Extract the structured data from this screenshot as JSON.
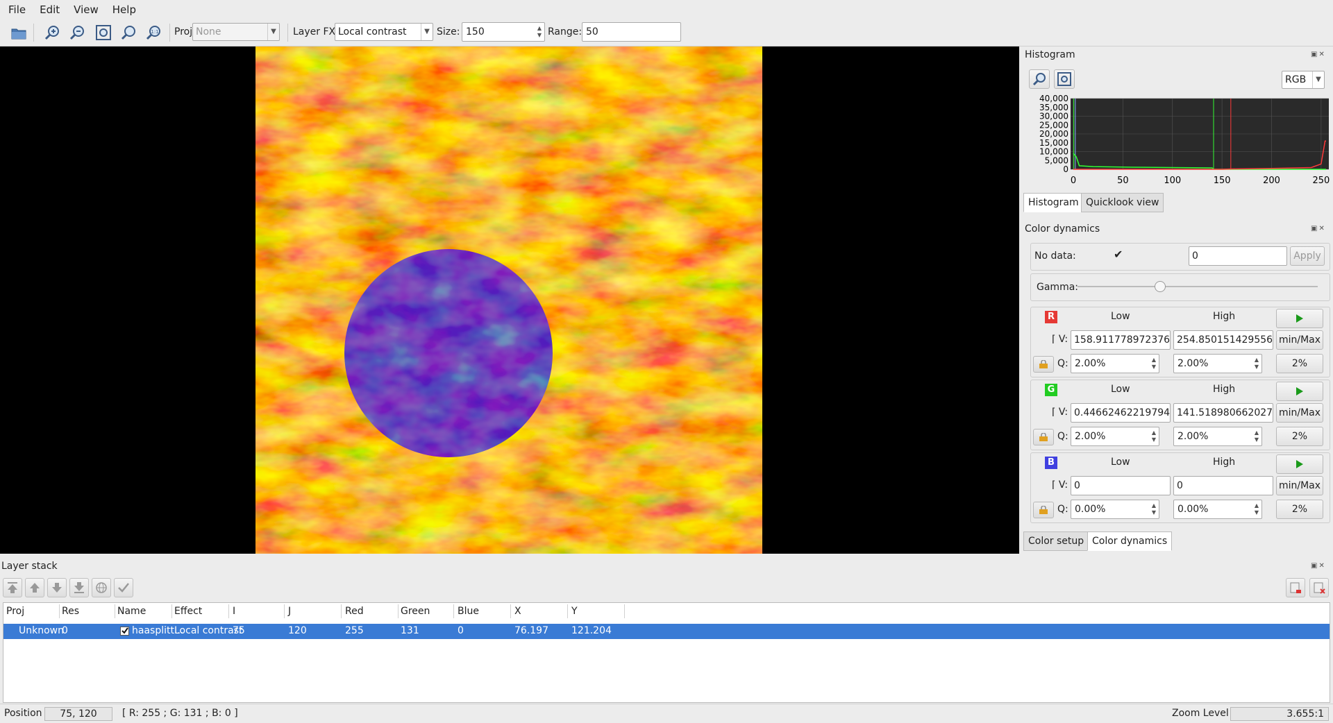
{
  "menubar": {
    "items": [
      "File",
      "Edit",
      "View",
      "Help"
    ]
  },
  "toolbar": {
    "proj_label": "Proj",
    "proj_value": "None",
    "layerfx_label": "Layer FX",
    "layerfx_value": "Local contrast",
    "size_label": "Size:",
    "size_value": "150",
    "range_label": "Range:",
    "range_value": "50"
  },
  "histogram": {
    "title": "Histogram",
    "mode": "RGB",
    "y_ticks": [
      "40,000",
      "35,000",
      "30,000",
      "25,000",
      "20,000",
      "15,000",
      "10,000",
      "5,000",
      "0"
    ],
    "x_ticks": [
      "0",
      "50",
      "100",
      "150",
      "200",
      "250"
    ],
    "tabs": [
      "Histogram",
      "Quicklook view"
    ],
    "colors": {
      "red": "#ff3a3a",
      "green": "#33ff33",
      "blue": "#3366ff",
      "bg": "#2a2a2a"
    }
  },
  "color_dynamics": {
    "title": "Color dynamics",
    "nodata_label": "No data:",
    "nodata_value": "0",
    "apply_label": "Apply",
    "gamma_label": "Gamma:",
    "gamma_position": 0.34,
    "low_label": "Low",
    "high_label": "High",
    "v_label": "V:",
    "q_label": "Q:",
    "minmax_label": "min/Max",
    "pct_label": "2%",
    "channels": [
      {
        "letter": "R",
        "color": "#e53935",
        "v_low": "158.911778972376",
        "v_high": "254.850151429556",
        "q_low": "2.00%",
        "q_high": "2.00%"
      },
      {
        "letter": "G",
        "color": "#22cc22",
        "v_low": "0.44662462219794",
        "v_high": "141.518980662027",
        "q_low": "2.00%",
        "q_high": "2.00%"
      },
      {
        "letter": "B",
        "color": "#4040e0",
        "v_low": "0",
        "v_high": "0",
        "q_low": "0.00%",
        "q_high": "0.00%"
      }
    ],
    "tabs": [
      "Color setup",
      "Color dynamics"
    ]
  },
  "layer_stack": {
    "title": "Layer stack",
    "columns": [
      "Proj",
      "Res",
      "Name",
      "Effect",
      "I",
      "J",
      "Red",
      "Green",
      "Blue",
      "X",
      "Y"
    ],
    "rows": [
      {
        "proj": "Unknown",
        "res": "0",
        "name": "haasplitt...",
        "effect": "Local contrast",
        "i": "75",
        "j": "120",
        "red": "255",
        "green": "131",
        "blue": "0",
        "x": "76.197",
        "y": "121.204"
      }
    ]
  },
  "statusbar": {
    "position_label": "Position",
    "position_value": "75, 120",
    "pixel_value": "[ R: 255 ; G: 131 ; B: 0 ]",
    "zoom_label": "Zoom Level",
    "zoom_value": "3.655:1"
  }
}
